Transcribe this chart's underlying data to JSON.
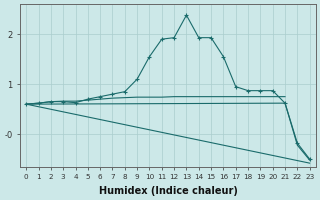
{
  "xlabel": "Humidex (Indice chaleur)",
  "ylabel": "",
  "bg_color": "#cce8e8",
  "line_color": "#1a6b6b",
  "grid_color": "#aacece",
  "xlim": [
    -0.5,
    23.5
  ],
  "ylim": [
    -0.65,
    2.6
  ],
  "yticks": [
    2,
    1,
    0
  ],
  "ytick_labels": [
    "2",
    "1",
    "-0"
  ],
  "xticks": [
    0,
    1,
    2,
    3,
    4,
    5,
    6,
    7,
    8,
    9,
    10,
    11,
    12,
    13,
    14,
    15,
    16,
    17,
    18,
    19,
    20,
    21,
    22,
    23
  ],
  "series": [
    {
      "x": [
        0,
        1,
        2,
        3,
        4,
        5,
        6,
        7,
        8,
        9,
        10,
        11,
        12,
        13,
        14,
        15,
        16,
        17,
        18,
        19,
        20,
        21,
        22,
        23
      ],
      "y": [
        0.6,
        0.62,
        0.65,
        0.65,
        0.63,
        0.7,
        0.75,
        0.8,
        0.85,
        1.1,
        1.55,
        1.9,
        1.93,
        2.38,
        1.93,
        1.93,
        1.55,
        0.95,
        0.87,
        0.87,
        0.87,
        0.62,
        -0.18,
        -0.5
      ],
      "marker": "+"
    },
    {
      "x": [
        0,
        1,
        2,
        3,
        4,
        5,
        6,
        7,
        8,
        9,
        10,
        11,
        12,
        13,
        14,
        15,
        16,
        17,
        18,
        19,
        20,
        21
      ],
      "y": [
        0.6,
        0.62,
        0.65,
        0.66,
        0.66,
        0.68,
        0.7,
        0.72,
        0.73,
        0.74,
        0.74,
        0.74,
        0.75,
        0.75,
        0.75,
        0.75,
        0.75,
        0.75,
        0.75,
        0.75,
        0.75,
        0.75
      ],
      "marker": null
    },
    {
      "x": [
        0,
        23
      ],
      "y": [
        0.6,
        -0.58
      ],
      "marker": null
    },
    {
      "x": [
        0,
        21,
        22,
        23
      ],
      "y": [
        0.6,
        0.62,
        -0.22,
        -0.52
      ],
      "marker": null
    }
  ]
}
